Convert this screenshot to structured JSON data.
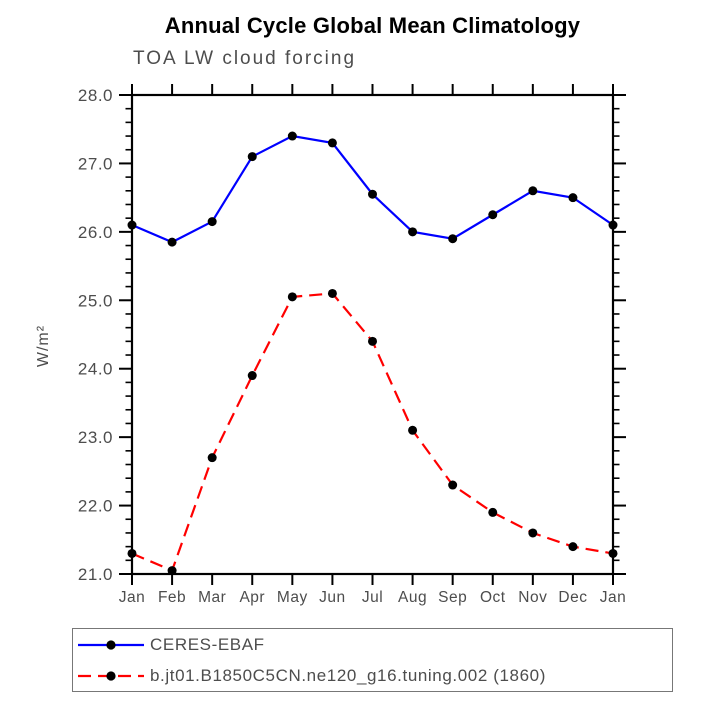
{
  "chart_data": {
    "type": "line",
    "suptitle": "Annual Cycle Global Mean Climatology",
    "title": "TOA LW cloud forcing",
    "ylabel": "W/m²",
    "xlabel": "",
    "categories": [
      "Jan",
      "Feb",
      "Mar",
      "Apr",
      "May",
      "Jun",
      "Jul",
      "Aug",
      "Sep",
      "Oct",
      "Nov",
      "Dec",
      "Jan"
    ],
    "ylim": [
      21.0,
      28.0
    ],
    "y_major_step": 1.0,
    "y_minor_step": 0.2,
    "grid": false,
    "legend_position": "bottom-left",
    "series": [
      {
        "name": "CERES-EBAF",
        "color": "#0000ff",
        "line_style": "solid",
        "marker": "filled-circle",
        "marker_color": "#000000",
        "values": [
          26.1,
          25.85,
          26.15,
          27.1,
          27.4,
          27.3,
          26.55,
          26.0,
          25.9,
          26.25,
          26.6,
          26.5,
          26.1
        ]
      },
      {
        "name": "b.jt01.B1850C5CN.ne120_g16.tuning.002 (1860)",
        "color": "#ff0000",
        "line_style": "dashed",
        "marker": "filled-circle",
        "marker_color": "#000000",
        "values": [
          21.3,
          21.05,
          22.7,
          23.9,
          25.05,
          25.1,
          24.4,
          23.1,
          22.3,
          21.9,
          21.6,
          21.4,
          21.3
        ]
      }
    ],
    "colors": {
      "axis": "#000000",
      "tick_text": "#4d4d4d",
      "title_text": "#000000"
    }
  }
}
